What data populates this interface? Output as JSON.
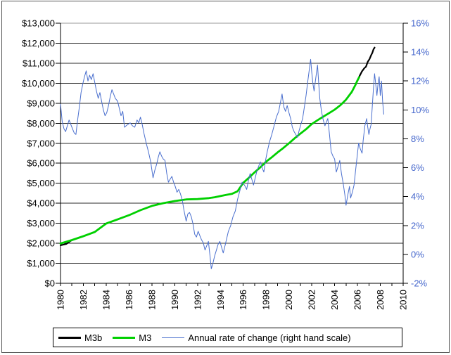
{
  "chart_data": {
    "type": "line",
    "title": "",
    "grid": "horizontal",
    "legend_position": "bottom",
    "x_axis": {
      "min": 1980,
      "max": 2010,
      "label_step": 2,
      "minor_tick_step": 1,
      "labels": [
        "1980",
        "1982",
        "1984",
        "1986",
        "1988",
        "1990",
        "1992",
        "1994",
        "1996",
        "1998",
        "2000",
        "2002",
        "2004",
        "2006",
        "2008",
        "2010"
      ]
    },
    "y_left_axis": {
      "min": 0,
      "max": 13000,
      "step": 1000,
      "labels": [
        "$0",
        "$1,000",
        "$2,000",
        "$3,000",
        "$4,000",
        "$5,000",
        "$6,000",
        "$7,000",
        "$8,000",
        "$9,000",
        "$10,000",
        "$11,000",
        "$12,000",
        "$13,000"
      ]
    },
    "y_right_axis": {
      "min": -2,
      "max": 16,
      "step": 2,
      "labels": [
        "-2%",
        "0%",
        "2%",
        "4%",
        "6%",
        "8%",
        "10%",
        "12%",
        "14%",
        "16%"
      ]
    },
    "series": [
      {
        "name": "M3b",
        "color": "#000000",
        "width": 2.2,
        "axis": "left",
        "points": [
          [
            1980,
            1900
          ],
          [
            1980.5,
            1965
          ],
          [
            1981,
            2160
          ],
          [
            1982,
            2355
          ],
          [
            1983,
            2565
          ],
          [
            1984,
            2985
          ],
          [
            1985,
            3195
          ],
          [
            1986,
            3405
          ],
          [
            1987,
            3655
          ],
          [
            1988,
            3870
          ],
          [
            1989,
            4005
          ],
          [
            1990,
            4110
          ],
          [
            1990.5,
            4150
          ],
          [
            1991,
            4190
          ],
          [
            1992,
            4210
          ],
          [
            1993,
            4260
          ],
          [
            1993.5,
            4300
          ],
          [
            1994,
            4360
          ],
          [
            1994.5,
            4420
          ],
          [
            1995,
            4470
          ],
          [
            1995.5,
            4600
          ],
          [
            1996,
            5020
          ],
          [
            1996.5,
            5280
          ],
          [
            1997,
            5550
          ],
          [
            1997.5,
            5800
          ],
          [
            1998,
            6080
          ],
          [
            1998.5,
            6300
          ],
          [
            1999,
            6540
          ],
          [
            1999.5,
            6760
          ],
          [
            2000,
            7000
          ],
          [
            2000.5,
            7250
          ],
          [
            2001,
            7480
          ],
          [
            2001.5,
            7700
          ],
          [
            2002,
            7960
          ],
          [
            2002.5,
            8150
          ],
          [
            2003,
            8330
          ],
          [
            2003.5,
            8500
          ],
          [
            2004,
            8680
          ],
          [
            2004.5,
            8900
          ],
          [
            2005,
            9180
          ],
          [
            2005.5,
            9560
          ],
          [
            2005.8,
            9890
          ],
          [
            2006,
            10140
          ],
          [
            2006.2,
            10380
          ],
          [
            2006.4,
            10600
          ],
          [
            2006.6,
            10750
          ],
          [
            2006.75,
            10830
          ],
          [
            2006.9,
            11070
          ],
          [
            2007.05,
            11200
          ],
          [
            2007.2,
            11400
          ],
          [
            2007.3,
            11520
          ],
          [
            2007.4,
            11690
          ],
          [
            2007.5,
            11780
          ]
        ]
      },
      {
        "name": "M3",
        "color": "#00d000",
        "width": 2.8,
        "axis": "left",
        "points": [
          [
            1980,
            1990
          ],
          [
            1981,
            2160
          ],
          [
            1982,
            2355
          ],
          [
            1983,
            2565
          ],
          [
            1984,
            2985
          ],
          [
            1985,
            3195
          ],
          [
            1986,
            3405
          ],
          [
            1987,
            3655
          ],
          [
            1988,
            3870
          ],
          [
            1989,
            4005
          ],
          [
            1990,
            4110
          ],
          [
            1990.5,
            4150
          ],
          [
            1991,
            4190
          ],
          [
            1992,
            4210
          ],
          [
            1993,
            4260
          ],
          [
            1993.5,
            4300
          ],
          [
            1994,
            4360
          ],
          [
            1994.5,
            4420
          ],
          [
            1995,
            4470
          ],
          [
            1995.5,
            4600
          ],
          [
            1996,
            5020
          ],
          [
            1996.5,
            5280
          ],
          [
            1997,
            5550
          ],
          [
            1997.5,
            5800
          ],
          [
            1998,
            6080
          ],
          [
            1998.5,
            6300
          ],
          [
            1999,
            6540
          ],
          [
            1999.5,
            6760
          ],
          [
            2000,
            7000
          ],
          [
            2000.5,
            7250
          ],
          [
            2001,
            7480
          ],
          [
            2001.5,
            7700
          ],
          [
            2002,
            7960
          ],
          [
            2002.5,
            8150
          ],
          [
            2003,
            8330
          ],
          [
            2003.5,
            8500
          ],
          [
            2004,
            8680
          ],
          [
            2004.5,
            8900
          ],
          [
            2005,
            9180
          ],
          [
            2005.5,
            9560
          ],
          [
            2005.8,
            9890
          ],
          [
            2006,
            10140
          ],
          [
            2006.15,
            10300
          ]
        ]
      },
      {
        "name": "Annual rate of change (right hand scale)",
        "color": "#4a6fce",
        "width": 1,
        "axis": "right",
        "points": [
          [
            1980,
            10.4
          ],
          [
            1980.15,
            9.2
          ],
          [
            1980.3,
            8.7
          ],
          [
            1980.45,
            8.5
          ],
          [
            1980.6,
            8.9
          ],
          [
            1980.75,
            9.3
          ],
          [
            1980.9,
            9.0
          ],
          [
            1981.05,
            8.7
          ],
          [
            1981.2,
            8.4
          ],
          [
            1981.35,
            8.3
          ],
          [
            1981.5,
            9.3
          ],
          [
            1981.65,
            10.2
          ],
          [
            1981.8,
            11.2
          ],
          [
            1981.95,
            11.8
          ],
          [
            1982.1,
            12.3
          ],
          [
            1982.25,
            12.7
          ],
          [
            1982.4,
            12.0
          ],
          [
            1982.55,
            12.4
          ],
          [
            1982.7,
            12.1
          ],
          [
            1982.85,
            12.5
          ],
          [
            1983.0,
            11.9
          ],
          [
            1983.15,
            11.3
          ],
          [
            1983.3,
            10.8
          ],
          [
            1983.45,
            11.2
          ],
          [
            1983.6,
            10.6
          ],
          [
            1983.75,
            10.0
          ],
          [
            1983.9,
            9.6
          ],
          [
            1984.05,
            9.8
          ],
          [
            1984.2,
            10.3
          ],
          [
            1984.35,
            10.9
          ],
          [
            1984.5,
            11.4
          ],
          [
            1984.65,
            11.1
          ],
          [
            1984.8,
            10.8
          ],
          [
            1985.0,
            10.6
          ],
          [
            1985.15,
            10.1
          ],
          [
            1985.3,
            9.6
          ],
          [
            1985.45,
            9.9
          ],
          [
            1985.6,
            8.8
          ],
          [
            1985.75,
            8.9
          ],
          [
            1985.9,
            9.0
          ],
          [
            1986.1,
            9.1
          ],
          [
            1986.3,
            8.9
          ],
          [
            1986.5,
            8.8
          ],
          [
            1986.7,
            9.3
          ],
          [
            1986.85,
            9.1
          ],
          [
            1987.0,
            9.5
          ],
          [
            1987.15,
            9.0
          ],
          [
            1987.3,
            8.4
          ],
          [
            1987.5,
            7.7
          ],
          [
            1987.7,
            7.1
          ],
          [
            1987.9,
            6.4
          ],
          [
            1988.1,
            5.3
          ],
          [
            1988.25,
            5.8
          ],
          [
            1988.4,
            6.2
          ],
          [
            1988.55,
            6.7
          ],
          [
            1988.7,
            7.1
          ],
          [
            1988.85,
            6.8
          ],
          [
            1989.0,
            6.6
          ],
          [
            1989.15,
            6.5
          ],
          [
            1989.3,
            5.6
          ],
          [
            1989.45,
            5.0
          ],
          [
            1989.6,
            5.2
          ],
          [
            1989.75,
            5.4
          ],
          [
            1989.9,
            5.0
          ],
          [
            1990.05,
            4.7
          ],
          [
            1990.2,
            4.3
          ],
          [
            1990.35,
            4.5
          ],
          [
            1990.5,
            4.2
          ],
          [
            1990.65,
            3.8
          ],
          [
            1990.8,
            3.1
          ],
          [
            1991.0,
            2.3
          ],
          [
            1991.15,
            2.8
          ],
          [
            1991.3,
            2.9
          ],
          [
            1991.45,
            2.6
          ],
          [
            1991.6,
            2.1
          ],
          [
            1991.75,
            1.4
          ],
          [
            1991.9,
            1.2
          ],
          [
            1992.05,
            1.6
          ],
          [
            1992.2,
            1.3
          ],
          [
            1992.35,
            1.0
          ],
          [
            1992.5,
            0.8
          ],
          [
            1992.65,
            0.3
          ],
          [
            1992.8,
            0.6
          ],
          [
            1992.95,
            0.9
          ],
          [
            1993.1,
            -0.2
          ],
          [
            1993.2,
            -1.0
          ],
          [
            1993.35,
            -0.6
          ],
          [
            1993.5,
            -0.1
          ],
          [
            1993.65,
            0.3
          ],
          [
            1993.8,
            0.7
          ],
          [
            1993.95,
            0.9
          ],
          [
            1994.1,
            0.5
          ],
          [
            1994.25,
            0.1
          ],
          [
            1994.4,
            0.6
          ],
          [
            1994.55,
            1.1
          ],
          [
            1994.7,
            1.6
          ],
          [
            1994.9,
            2.0
          ],
          [
            1995.1,
            2.6
          ],
          [
            1995.3,
            3.0
          ],
          [
            1995.5,
            3.8
          ],
          [
            1995.7,
            4.4
          ],
          [
            1995.9,
            5.0
          ],
          [
            1996.1,
            4.8
          ],
          [
            1996.3,
            4.5
          ],
          [
            1996.45,
            5.1
          ],
          [
            1996.6,
            5.6
          ],
          [
            1996.75,
            5.2
          ],
          [
            1996.9,
            4.8
          ],
          [
            1997.05,
            5.3
          ],
          [
            1997.2,
            5.8
          ],
          [
            1997.35,
            6.1
          ],
          [
            1997.5,
            6.4
          ],
          [
            1997.65,
            6.0
          ],
          [
            1997.8,
            5.7
          ],
          [
            1997.95,
            6.5
          ],
          [
            1998.1,
            7.1
          ],
          [
            1998.3,
            7.8
          ],
          [
            1998.5,
            8.3
          ],
          [
            1998.7,
            8.9
          ],
          [
            1998.9,
            9.5
          ],
          [
            1999.1,
            9.9
          ],
          [
            1999.25,
            10.5
          ],
          [
            1999.4,
            11.1
          ],
          [
            1999.55,
            10.2
          ],
          [
            1999.7,
            9.9
          ],
          [
            1999.85,
            10.3
          ],
          [
            2000.0,
            9.8
          ],
          [
            2000.15,
            9.4
          ],
          [
            2000.3,
            8.8
          ],
          [
            2000.45,
            8.5
          ],
          [
            2000.6,
            8.3
          ],
          [
            2000.75,
            8.1
          ],
          [
            2000.9,
            8.6
          ],
          [
            2001.05,
            9.0
          ],
          [
            2001.2,
            9.4
          ],
          [
            2001.35,
            10.2
          ],
          [
            2001.5,
            11.0
          ],
          [
            2001.65,
            12.0
          ],
          [
            2001.8,
            12.9
          ],
          [
            2001.9,
            13.5
          ],
          [
            2002.0,
            12.6
          ],
          [
            2002.1,
            11.8
          ],
          [
            2002.2,
            11.3
          ],
          [
            2002.35,
            12.2
          ],
          [
            2002.5,
            13.1
          ],
          [
            2002.6,
            11.9
          ],
          [
            2002.7,
            10.8
          ],
          [
            2002.85,
            9.9
          ],
          [
            2003.0,
            9.3
          ],
          [
            2003.15,
            8.9
          ],
          [
            2003.3,
            9.2
          ],
          [
            2003.4,
            9.4
          ],
          [
            2003.55,
            8.3
          ],
          [
            2003.7,
            7.1
          ],
          [
            2003.85,
            6.8
          ],
          [
            2004.0,
            6.6
          ],
          [
            2004.15,
            5.7
          ],
          [
            2004.3,
            6.1
          ],
          [
            2004.45,
            6.5
          ],
          [
            2004.6,
            5.6
          ],
          [
            2004.75,
            4.9
          ],
          [
            2004.9,
            4.1
          ],
          [
            2005.0,
            3.4
          ],
          [
            2005.15,
            4.1
          ],
          [
            2005.3,
            4.7
          ],
          [
            2005.4,
            3.9
          ],
          [
            2005.55,
            4.3
          ],
          [
            2005.7,
            4.8
          ],
          [
            2005.85,
            5.9
          ],
          [
            2006.0,
            7.0
          ],
          [
            2006.1,
            7.7
          ],
          [
            2006.25,
            7.3
          ],
          [
            2006.4,
            7.0
          ],
          [
            2006.5,
            7.9
          ],
          [
            2006.65,
            8.9
          ],
          [
            2006.8,
            9.4
          ],
          [
            2006.9,
            8.8
          ],
          [
            2007.0,
            8.3
          ],
          [
            2007.1,
            8.7
          ],
          [
            2007.2,
            9.0
          ],
          [
            2007.3,
            10.3
          ],
          [
            2007.4,
            11.5
          ],
          [
            2007.5,
            12.5
          ],
          [
            2007.6,
            11.8
          ],
          [
            2007.7,
            11.0
          ],
          [
            2007.8,
            11.8
          ],
          [
            2007.9,
            12.3
          ],
          [
            2008.0,
            11.0
          ],
          [
            2008.1,
            12.0
          ],
          [
            2008.2,
            10.6
          ],
          [
            2008.3,
            9.7
          ]
        ]
      }
    ]
  },
  "legend": {
    "items": [
      {
        "label": "M3b",
        "color": "#000000",
        "thickness": 3
      },
      {
        "label": "M3",
        "color": "#00d000",
        "thickness": 3
      },
      {
        "label": "Annual rate of change (right hand scale)",
        "color": "#4a6fce",
        "thickness": 1
      }
    ]
  },
  "colors": {
    "background": "#ffffff",
    "gridline": "#2b2b2b",
    "top_border": "#999999",
    "axis": "#000000",
    "left_axis_text": "#000000",
    "right_axis_text": "#4466cc",
    "outer_border": "#555555"
  }
}
